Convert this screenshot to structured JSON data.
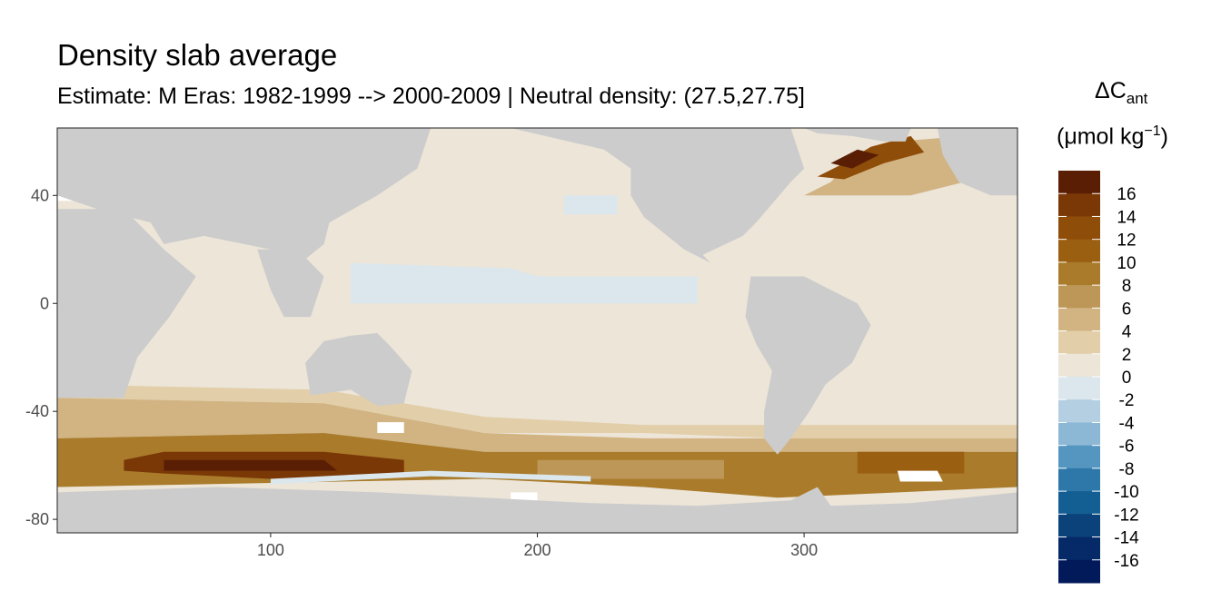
{
  "chart_data": {
    "type": "heatmap",
    "title": "Density slab average",
    "subtitle": "Estimate: M Eras: 1982-1999 --> 2000-2009 | Neutral density: (27.5,27.75]",
    "xlabel": "",
    "ylabel": "",
    "xlim": [
      20,
      380
    ],
    "ylim": [
      -85,
      65
    ],
    "x_ticks": [
      100,
      200,
      300
    ],
    "y_ticks": [
      40,
      0,
      -40,
      -80
    ],
    "legend": {
      "title_main": "ΔC",
      "title_sub": "ant",
      "unit_prefix": "(μmol kg",
      "unit_exp": "−1",
      "unit_suffix": ")",
      "placement": "right",
      "labels": [
        "16",
        "14",
        "12",
        "10",
        "8",
        "6",
        "4",
        "2",
        "0",
        "-2",
        "-4",
        "-6",
        "-8",
        "-10",
        "-12",
        "-14",
        "-16"
      ],
      "colors": [
        "#5a1e05",
        "#7a3807",
        "#8f4d0a",
        "#9b5f12",
        "#a97b2b",
        "#bd9758",
        "#d2b483",
        "#e2cfaa",
        "#ece5d8",
        "#dbe7ed",
        "#b3cfe1",
        "#8cb8d6",
        "#5596c0",
        "#2e77a9",
        "#135e92",
        "#0a4279",
        "#062a68",
        "#021a5a"
      ]
    },
    "ocean_regions": [
      {
        "name": "Pacific",
        "value": 0.5,
        "poly": [
          [
            125,
            60
          ],
          [
            250,
            60
          ],
          [
            285,
            10
          ],
          [
            285,
            -50
          ],
          [
            170,
            -50
          ],
          [
            150,
            -40
          ],
          [
            140,
            -10
          ],
          [
            120,
            20
          ]
        ]
      },
      {
        "name": "Indian",
        "value": 1,
        "poly": [
          [
            20,
            -35
          ],
          [
            45,
            -10
          ],
          [
            55,
            15
          ],
          [
            75,
            25
          ],
          [
            95,
            20
          ],
          [
            115,
            -10
          ],
          [
            115,
            -35
          ],
          [
            140,
            -45
          ],
          [
            20,
            -45
          ]
        ]
      },
      {
        "name": "Atlantic",
        "value": 1,
        "poly": [
          [
            290,
            40
          ],
          [
            340,
            40
          ],
          [
            352,
            20
          ],
          [
            360,
            0
          ],
          [
            365,
            -40
          ],
          [
            300,
            -40
          ],
          [
            330,
            -5
          ],
          [
            280,
            10
          ]
        ]
      },
      {
        "name": "Pacific central band",
        "value": -0.5,
        "poly": [
          [
            130,
            15
          ],
          [
            190,
            13
          ],
          [
            200,
            10
          ],
          [
            260,
            10
          ],
          [
            260,
            0
          ],
          [
            130,
            0
          ]
        ]
      },
      {
        "name": "Pacific NW patch",
        "value": -0.5,
        "poly": [
          [
            210,
            40
          ],
          [
            230,
            40
          ],
          [
            230,
            33
          ],
          [
            210,
            33
          ]
        ]
      },
      {
        "name": "Southern Ocean mid",
        "value": 3,
        "poly": [
          [
            20,
            -35
          ],
          [
            120,
            -37
          ],
          [
            180,
            -48
          ],
          [
            240,
            -48
          ],
          [
            290,
            -50
          ],
          [
            380,
            -50
          ],
          [
            380,
            -45
          ],
          [
            290,
            -45
          ],
          [
            240,
            -45
          ],
          [
            180,
            -42
          ],
          [
            120,
            -32
          ],
          [
            20,
            -30
          ]
        ]
      },
      {
        "name": "Southern Ocean low band",
        "value": 5,
        "poly": [
          [
            20,
            -50
          ],
          [
            120,
            -48
          ],
          [
            180,
            -55
          ],
          [
            240,
            -55
          ],
          [
            290,
            -55
          ],
          [
            380,
            -55
          ],
          [
            380,
            -50
          ],
          [
            290,
            -50
          ],
          [
            240,
            -50
          ],
          [
            180,
            -48
          ],
          [
            120,
            -37
          ],
          [
            20,
            -35
          ]
        ]
      },
      {
        "name": "Southern Ocean deep",
        "value": 9,
        "poly": [
          [
            20,
            -68
          ],
          [
            180,
            -65
          ],
          [
            240,
            -68
          ],
          [
            290,
            -72
          ],
          [
            380,
            -68
          ],
          [
            380,
            -55
          ],
          [
            290,
            -55
          ],
          [
            240,
            -55
          ],
          [
            180,
            -55
          ],
          [
            120,
            -48
          ],
          [
            20,
            -50
          ]
        ]
      },
      {
        "name": "Indian sector core",
        "value": 15,
        "poly": [
          [
            45,
            -58
          ],
          [
            60,
            -55
          ],
          [
            120,
            -55
          ],
          [
            150,
            -58
          ],
          [
            150,
            -64
          ],
          [
            120,
            -66
          ],
          [
            60,
            -63
          ],
          [
            45,
            -62
          ]
        ]
      },
      {
        "name": "Indian sector peak",
        "value": 17,
        "poly": [
          [
            60,
            -58
          ],
          [
            120,
            -58
          ],
          [
            125,
            -62
          ],
          [
            60,
            -62
          ]
        ]
      },
      {
        "name": "Pacific sector core",
        "value": 7,
        "poly": [
          [
            200,
            -58
          ],
          [
            270,
            -58
          ],
          [
            270,
            -65
          ],
          [
            200,
            -65
          ]
        ]
      },
      {
        "name": "Atlantic sector core",
        "value": 11,
        "poly": [
          [
            320,
            -55
          ],
          [
            360,
            -55
          ],
          [
            360,
            -63
          ],
          [
            320,
            -63
          ]
        ]
      },
      {
        "name": "North Atlantic",
        "value": 5,
        "poly": [
          [
            300,
            40
          ],
          [
            310,
            45
          ],
          [
            320,
            55
          ],
          [
            335,
            60
          ],
          [
            360,
            62
          ],
          [
            360,
            45
          ],
          [
            340,
            40
          ]
        ]
      },
      {
        "name": "North Atlantic core",
        "value": 13,
        "poly": [
          [
            305,
            47
          ],
          [
            315,
            52
          ],
          [
            325,
            58
          ],
          [
            340,
            62
          ],
          [
            345,
            56
          ],
          [
            330,
            52
          ],
          [
            315,
            46
          ]
        ]
      },
      {
        "name": "Labrador peak",
        "value": 17,
        "poly": [
          [
            310,
            52
          ],
          [
            320,
            57
          ],
          [
            328,
            55
          ],
          [
            318,
            50
          ]
        ]
      },
      {
        "name": "Antarctic shelf band",
        "value": -0.5,
        "poly": [
          [
            100,
            -65
          ],
          [
            160,
            -62
          ],
          [
            220,
            -64
          ],
          [
            220,
            -66
          ],
          [
            160,
            -64
          ],
          [
            100,
            -67
          ]
        ]
      }
    ],
    "land_masses": [
      {
        "name": "Africa",
        "poly": [
          [
            20,
            35
          ],
          [
            45,
            35
          ],
          [
            60,
            20
          ],
          [
            72,
            10
          ],
          [
            62,
            -5
          ],
          [
            50,
            -20
          ],
          [
            45,
            -35
          ],
          [
            20,
            -35
          ]
        ]
      },
      {
        "name": "Eurasia",
        "poly": [
          [
            20,
            65
          ],
          [
            160,
            65
          ],
          [
            155,
            50
          ],
          [
            140,
            40
          ],
          [
            122,
            30
          ],
          [
            120,
            22
          ],
          [
            105,
            10
          ],
          [
            100,
            20
          ],
          [
            90,
            22
          ],
          [
            75,
            25
          ],
          [
            60,
            22
          ],
          [
            55,
            30
          ],
          [
            35,
            35
          ],
          [
            20,
            40
          ]
        ]
      },
      {
        "name": "Southeast Asia",
        "poly": [
          [
            95,
            20
          ],
          [
            110,
            20
          ],
          [
            120,
            10
          ],
          [
            115,
            -5
          ],
          [
            105,
            -5
          ],
          [
            100,
            5
          ]
        ]
      },
      {
        "name": "Australia",
        "poly": [
          [
            113,
            -22
          ],
          [
            120,
            -14
          ],
          [
            130,
            -12
          ],
          [
            140,
            -11
          ],
          [
            145,
            -16
          ],
          [
            153,
            -25
          ],
          [
            150,
            -37
          ],
          [
            140,
            -38
          ],
          [
            130,
            -32
          ],
          [
            115,
            -34
          ]
        ]
      },
      {
        "name": "North America",
        "poly": [
          [
            190,
            65
          ],
          [
            295,
            65
          ],
          [
            300,
            50
          ],
          [
            295,
            45
          ],
          [
            282,
            30
          ],
          [
            277,
            25
          ],
          [
            262,
            18
          ],
          [
            265,
            15
          ],
          [
            255,
            20
          ],
          [
            240,
            32
          ],
          [
            235,
            40
          ],
          [
            235,
            50
          ],
          [
            225,
            57
          ]
        ]
      },
      {
        "name": "South America",
        "poly": [
          [
            280,
            10
          ],
          [
            300,
            10
          ],
          [
            320,
            0
          ],
          [
            325,
            -8
          ],
          [
            318,
            -22
          ],
          [
            308,
            -30
          ],
          [
            302,
            -40
          ],
          [
            295,
            -50
          ],
          [
            290,
            -56
          ],
          [
            285,
            -50
          ],
          [
            285,
            -40
          ],
          [
            288,
            -25
          ],
          [
            282,
            -15
          ],
          [
            278,
            -5
          ]
        ]
      },
      {
        "name": "Greenland",
        "poly": [
          [
            300,
            65
          ],
          [
            340,
            65
          ],
          [
            338,
            60
          ],
          [
            330,
            60
          ],
          [
            318,
            62
          ],
          [
            305,
            63
          ]
        ]
      },
      {
        "name": "Europe west",
        "poly": [
          [
            350,
            65
          ],
          [
            380,
            65
          ],
          [
            380,
            40
          ],
          [
            370,
            40
          ],
          [
            358,
            45
          ],
          [
            352,
            55
          ]
        ]
      },
      {
        "name": "Antarctica",
        "poly": [
          [
            20,
            -70
          ],
          [
            80,
            -68
          ],
          [
            140,
            -70
          ],
          [
            180,
            -72
          ],
          [
            220,
            -74
          ],
          [
            260,
            -75
          ],
          [
            295,
            -73
          ],
          [
            305,
            -68
          ],
          [
            310,
            -75
          ],
          [
            340,
            -74
          ],
          [
            380,
            -70
          ],
          [
            380,
            -85
          ],
          [
            20,
            -85
          ]
        ]
      }
    ],
    "nodata_regions": [
      {
        "name": "Weddell Sea patch",
        "poly": [
          [
            335,
            -62
          ],
          [
            350,
            -62
          ],
          [
            352,
            -66
          ],
          [
            336,
            -66
          ]
        ]
      },
      {
        "name": "Ross Sea patch",
        "poly": [
          [
            190,
            -70
          ],
          [
            200,
            -70
          ],
          [
            200,
            -73
          ],
          [
            190,
            -73
          ]
        ]
      },
      {
        "name": "SW Pacific patch",
        "poly": [
          [
            140,
            -44
          ],
          [
            150,
            -44
          ],
          [
            150,
            -48
          ],
          [
            140,
            -48
          ]
        ]
      },
      {
        "name": "Mediterranean",
        "poly": [
          [
            20,
            42
          ],
          [
            40,
            45
          ],
          [
            50,
            43
          ],
          [
            60,
            40
          ],
          [
            55,
            38
          ],
          [
            40,
            38
          ],
          [
            20,
            38
          ]
        ]
      }
    ]
  }
}
